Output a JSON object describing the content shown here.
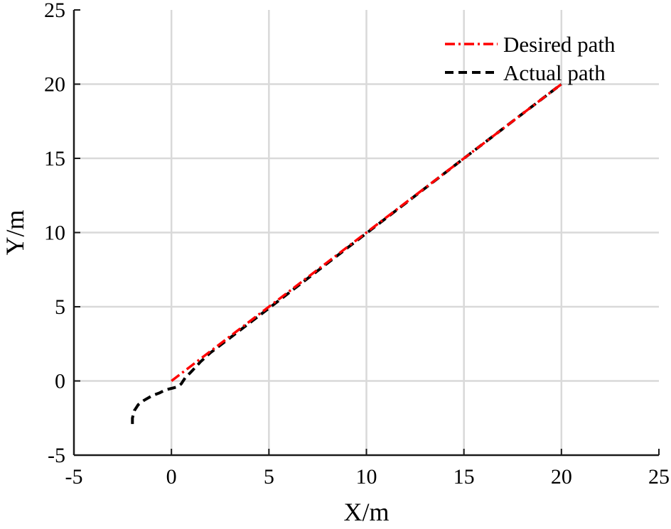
{
  "chart_data": {
    "type": "line",
    "xlabel": "X/m",
    "ylabel": "Y/m",
    "xlim": [
      -5,
      25
    ],
    "ylim": [
      -5,
      25
    ],
    "xticks": [
      -5,
      0,
      5,
      10,
      15,
      20,
      25
    ],
    "yticks": [
      -5,
      0,
      5,
      10,
      15,
      20,
      25
    ],
    "grid": true,
    "legend_position": "top-right",
    "series": [
      {
        "name": "Desired path",
        "color": "#ff0000",
        "style": "dash-dot",
        "x": [
          0,
          20
        ],
        "y": [
          0,
          20
        ]
      },
      {
        "name": "Actual path",
        "color": "#000000",
        "style": "dashed",
        "x": [
          -2.0,
          -2.0,
          -1.9,
          -1.7,
          -1.4,
          -1.0,
          -0.6,
          -0.3,
          0.0,
          0.3,
          0.5,
          0.7,
          1.0,
          1.5,
          2.0,
          3.0,
          5.0,
          10.0,
          15.0,
          20.0
        ],
        "y": [
          -2.9,
          -2.5,
          -2.0,
          -1.6,
          -1.3,
          -1.0,
          -0.8,
          -0.6,
          -0.5,
          -0.4,
          -0.2,
          0.2,
          0.6,
          1.3,
          1.9,
          2.9,
          4.9,
          9.95,
          15.0,
          20.0
        ]
      }
    ]
  }
}
